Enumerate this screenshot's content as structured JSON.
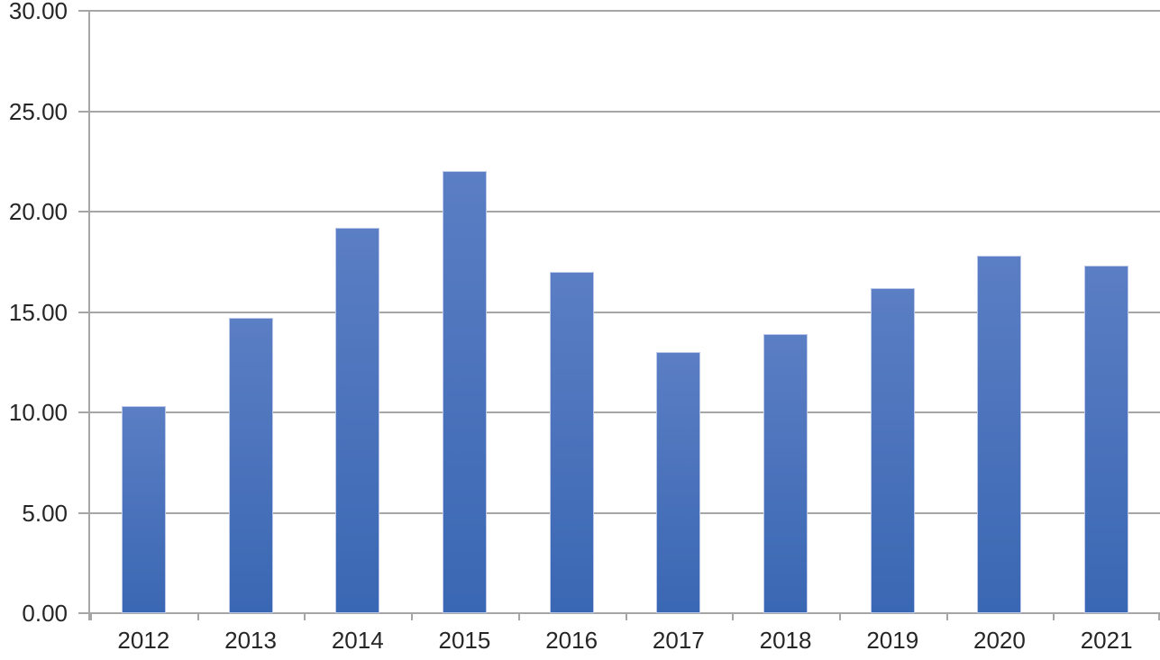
{
  "chart_data": {
    "type": "bar",
    "categories": [
      "2012",
      "2013",
      "2014",
      "2015",
      "2016",
      "2017",
      "2018",
      "2019",
      "2020",
      "2021"
    ],
    "values": [
      10.3,
      14.7,
      19.2,
      22.0,
      17.0,
      13.0,
      13.9,
      16.2,
      17.8,
      17.3
    ],
    "title": "",
    "xlabel": "",
    "ylabel": "",
    "ylim": [
      0,
      30
    ],
    "ytick_step": 5,
    "ytick_labels": [
      "0.00",
      "5.00",
      "10.00",
      "15.00",
      "20.00",
      "25.00",
      "30.00"
    ],
    "grid": true,
    "legend": false,
    "series_name": "",
    "colors": {
      "bar_top": "#5B7EC4",
      "bar_bottom": "#3A67B3",
      "bar_border": "#BCC8E8",
      "gridline": "#A6A6A6",
      "axis": "#A6A6A6",
      "label": "#262626",
      "background": "#FFFFFF"
    }
  }
}
